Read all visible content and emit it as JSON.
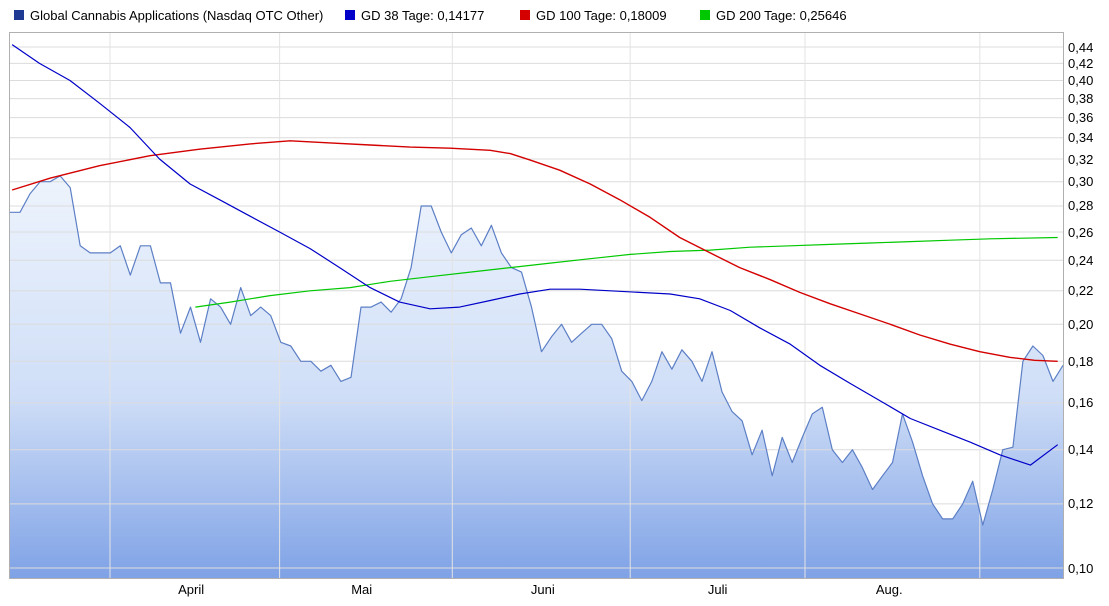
{
  "legend": {
    "items": [
      {
        "label": "Global Cannabis Applications (Nasdaq OTC Other)",
        "color": "#1f3a93"
      },
      {
        "label": "GD 38 Tage: 0,14177",
        "color": "#0000c8"
      },
      {
        "label": "GD 100 Tage: 0,18009",
        "color": "#d40000"
      },
      {
        "label": "GD 200 Tage: 0,25646",
        "color": "#00c800"
      }
    ]
  },
  "chart_data": {
    "type": "area",
    "title": "Global Cannabis Applications (Nasdaq OTC Other)",
    "yscale": "log",
    "ylim": [
      0.0972,
      0.4579
    ],
    "grid": true,
    "legend_position": "top",
    "area_fill": {
      "top": "#eef4fd",
      "mid": "#cfdef7",
      "bottom": "#7fa2e6"
    },
    "yticks": [
      {
        "value": 0.44,
        "label": "0,44"
      },
      {
        "value": 0.42,
        "label": "0,42"
      },
      {
        "value": 0.4,
        "label": "0,40"
      },
      {
        "value": 0.38,
        "label": "0,38"
      },
      {
        "value": 0.36,
        "label": "0,36"
      },
      {
        "value": 0.34,
        "label": "0,34"
      },
      {
        "value": 0.32,
        "label": "0,32"
      },
      {
        "value": 0.3,
        "label": "0,30"
      },
      {
        "value": 0.28,
        "label": "0,28"
      },
      {
        "value": 0.26,
        "label": "0,26"
      },
      {
        "value": 0.24,
        "label": "0,24"
      },
      {
        "value": 0.22,
        "label": "0,22"
      },
      {
        "value": 0.2,
        "label": "0,20"
      },
      {
        "value": 0.18,
        "label": "0,18"
      },
      {
        "value": 0.16,
        "label": "0,16"
      },
      {
        "value": 0.14,
        "label": "0,14"
      },
      {
        "value": 0.12,
        "label": "0,12"
      },
      {
        "value": 0.1,
        "label": "0,10"
      }
    ],
    "xgridlines_t": [
      9.5,
      25.6,
      42.0,
      58.9,
      75.5,
      92.1
    ],
    "xlabels": [
      {
        "t": 17.2,
        "label": "April"
      },
      {
        "t": 33.4,
        "label": "Mai"
      },
      {
        "t": 50.6,
        "label": "Juni"
      },
      {
        "t": 67.2,
        "label": "Juli"
      },
      {
        "t": 83.5,
        "label": "Aug."
      }
    ],
    "series": [
      {
        "name": "Global Cannabis Applications (Nasdaq OTC Other)",
        "type": "area",
        "color": "#5c7fc5",
        "width": 1.2,
        "values": [
          0.275,
          0.275,
          0.29,
          0.3,
          0.3,
          0.305,
          0.295,
          0.25,
          0.245,
          0.245,
          0.245,
          0.25,
          0.23,
          0.25,
          0.25,
          0.225,
          0.225,
          0.195,
          0.21,
          0.19,
          0.215,
          0.21,
          0.2,
          0.222,
          0.205,
          0.21,
          0.205,
          0.19,
          0.188,
          0.18,
          0.18,
          0.175,
          0.178,
          0.17,
          0.172,
          0.21,
          0.21,
          0.213,
          0.207,
          0.215,
          0.235,
          0.28,
          0.28,
          0.26,
          0.245,
          0.258,
          0.263,
          0.25,
          0.265,
          0.245,
          0.235,
          0.232,
          0.21,
          0.185,
          0.193,
          0.2,
          0.19,
          0.195,
          0.2,
          0.2,
          0.192,
          0.175,
          0.17,
          0.161,
          0.17,
          0.185,
          0.176,
          0.186,
          0.18,
          0.17,
          0.185,
          0.165,
          0.156,
          0.152,
          0.138,
          0.148,
          0.13,
          0.145,
          0.135,
          0.145,
          0.155,
          0.158,
          0.14,
          0.135,
          0.14,
          0.133,
          0.125,
          0.13,
          0.135,
          0.155,
          0.143,
          0.13,
          0.12,
          0.115,
          0.115,
          0.12,
          0.128,
          0.113,
          0.125,
          0.14,
          0.141,
          0.18,
          0.188,
          0.183,
          0.17,
          0.178
        ]
      },
      {
        "name": "GD 200 Tage",
        "last_value": "0,25646",
        "type": "line",
        "color": "#00c800",
        "width": 1.2,
        "points": [
          [
            17.6,
            0.21
          ],
          [
            20.9,
            0.213
          ],
          [
            24.7,
            0.217
          ],
          [
            28.5,
            0.22
          ],
          [
            32.3,
            0.222
          ],
          [
            36.1,
            0.226
          ],
          [
            39.9,
            0.229
          ],
          [
            43.7,
            0.232
          ],
          [
            47.5,
            0.235
          ],
          [
            51.3,
            0.238
          ],
          [
            55.1,
            0.241
          ],
          [
            58.9,
            0.244
          ],
          [
            62.7,
            0.246
          ],
          [
            66.5,
            0.247
          ],
          [
            70.3,
            0.249
          ],
          [
            74.1,
            0.25
          ],
          [
            77.9,
            0.251
          ],
          [
            81.7,
            0.252
          ],
          [
            85.5,
            0.253
          ],
          [
            89.3,
            0.254
          ],
          [
            93.1,
            0.255
          ],
          [
            99.5,
            0.256
          ]
        ]
      },
      {
        "name": "GD 100 Tage",
        "last_value": "0,18009",
        "type": "line",
        "color": "#d40000",
        "width": 1.4,
        "points": [
          [
            0.2,
            0.293
          ],
          [
            3.8,
            0.303
          ],
          [
            8.5,
            0.314
          ],
          [
            13.3,
            0.323
          ],
          [
            18.0,
            0.329
          ],
          [
            22.8,
            0.334
          ],
          [
            26.6,
            0.337
          ],
          [
            30.4,
            0.335
          ],
          [
            34.2,
            0.333
          ],
          [
            38.0,
            0.331
          ],
          [
            41.8,
            0.33
          ],
          [
            45.6,
            0.328
          ],
          [
            47.5,
            0.325
          ],
          [
            49.4,
            0.319
          ],
          [
            52.2,
            0.31
          ],
          [
            55.1,
            0.298
          ],
          [
            57.9,
            0.285
          ],
          [
            60.8,
            0.271
          ],
          [
            63.6,
            0.256
          ],
          [
            66.5,
            0.245
          ],
          [
            69.3,
            0.235
          ],
          [
            72.2,
            0.227
          ],
          [
            75.0,
            0.219
          ],
          [
            77.9,
            0.212
          ],
          [
            80.7,
            0.206
          ],
          [
            83.6,
            0.2
          ],
          [
            86.4,
            0.194
          ],
          [
            89.3,
            0.189
          ],
          [
            92.1,
            0.185
          ],
          [
            95.0,
            0.182
          ],
          [
            97.3,
            0.1805
          ],
          [
            99.5,
            0.18
          ]
        ]
      },
      {
        "name": "GD 38 Tage",
        "last_value": "0,14177",
        "type": "line",
        "color": "#0000c8",
        "width": 1.2,
        "points": [
          [
            0.2,
            0.443
          ],
          [
            2.8,
            0.42
          ],
          [
            5.7,
            0.4
          ],
          [
            8.5,
            0.375
          ],
          [
            11.4,
            0.35
          ],
          [
            14.2,
            0.32
          ],
          [
            17.1,
            0.298
          ],
          [
            19.9,
            0.285
          ],
          [
            22.8,
            0.272
          ],
          [
            25.6,
            0.26
          ],
          [
            28.5,
            0.248
          ],
          [
            31.3,
            0.235
          ],
          [
            34.2,
            0.222
          ],
          [
            37.0,
            0.213
          ],
          [
            39.9,
            0.209
          ],
          [
            42.7,
            0.21
          ],
          [
            45.6,
            0.214
          ],
          [
            48.4,
            0.218
          ],
          [
            51.3,
            0.221
          ],
          [
            54.1,
            0.221
          ],
          [
            57.0,
            0.22
          ],
          [
            59.8,
            0.219
          ],
          [
            62.7,
            0.218
          ],
          [
            65.5,
            0.215
          ],
          [
            68.4,
            0.208
          ],
          [
            71.2,
            0.198
          ],
          [
            74.1,
            0.189
          ],
          [
            76.9,
            0.178
          ],
          [
            79.8,
            0.169
          ],
          [
            82.6,
            0.161
          ],
          [
            85.5,
            0.153
          ],
          [
            88.3,
            0.148
          ],
          [
            91.2,
            0.143
          ],
          [
            94.0,
            0.138
          ],
          [
            96.9,
            0.134
          ],
          [
            99.5,
            0.142
          ]
        ]
      }
    ]
  }
}
